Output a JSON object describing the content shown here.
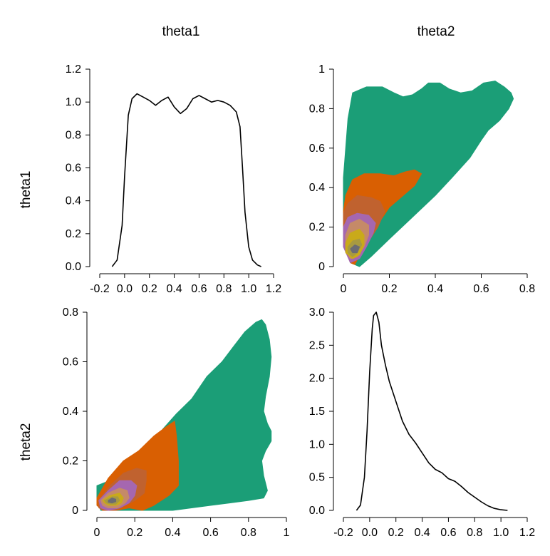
{
  "column_titles": [
    "theta1",
    "theta2"
  ],
  "row_titles": [
    "theta1",
    "theta2"
  ],
  "colors": {
    "levels": [
      "#1b9e77",
      "#d95f02",
      "#c0622f",
      "#a567b0",
      "#c58a68",
      "#c9aa1a",
      "#a89a40",
      "#6b6b73"
    ],
    "density_line": "#000000"
  },
  "chart_data": [
    {
      "panel": "theta1-density",
      "type": "line",
      "x": [
        -0.1,
        -0.06,
        -0.02,
        0.0,
        0.03,
        0.06,
        0.1,
        0.15,
        0.2,
        0.25,
        0.3,
        0.35,
        0.4,
        0.45,
        0.5,
        0.55,
        0.6,
        0.65,
        0.7,
        0.75,
        0.8,
        0.85,
        0.9,
        0.93,
        0.95,
        0.97,
        1.0,
        1.03,
        1.07,
        1.1
      ],
      "y": [
        0.0,
        0.04,
        0.25,
        0.55,
        0.92,
        1.02,
        1.05,
        1.03,
        1.01,
        0.98,
        1.01,
        1.03,
        0.97,
        0.93,
        0.96,
        1.02,
        1.04,
        1.02,
        1.0,
        1.01,
        1.0,
        0.98,
        0.94,
        0.85,
        0.6,
        0.33,
        0.12,
        0.04,
        0.01,
        0.0
      ],
      "x_ticks": [
        "-0.2",
        "0.0",
        "0.2",
        "0.4",
        "0.6",
        "0.8",
        "1.0",
        "1.2"
      ],
      "y_ticks": [
        "0.0",
        "0.2",
        "0.4",
        "0.6",
        "0.8",
        "1.0",
        "1.2"
      ],
      "xlim": [
        -0.2,
        1.2
      ],
      "ylim": [
        0,
        1.2
      ]
    },
    {
      "panel": "theta2-vs-theta1-contour",
      "type": "area",
      "levels": [
        [
          [
            0.0,
            0.45
          ],
          [
            0.01,
            0.6
          ],
          [
            0.02,
            0.75
          ],
          [
            0.04,
            0.88
          ],
          [
            0.1,
            0.91
          ],
          [
            0.17,
            0.91
          ],
          [
            0.22,
            0.88
          ],
          [
            0.26,
            0.86
          ],
          [
            0.3,
            0.87
          ],
          [
            0.34,
            0.9
          ],
          [
            0.37,
            0.93
          ],
          [
            0.42,
            0.93
          ],
          [
            0.46,
            0.9
          ],
          [
            0.51,
            0.88
          ],
          [
            0.56,
            0.89
          ],
          [
            0.61,
            0.93
          ],
          [
            0.66,
            0.94
          ],
          [
            0.7,
            0.91
          ],
          [
            0.73,
            0.88
          ],
          [
            0.74,
            0.85
          ],
          [
            0.72,
            0.8
          ],
          [
            0.68,
            0.74
          ],
          [
            0.63,
            0.69
          ],
          [
            0.6,
            0.64
          ],
          [
            0.55,
            0.55
          ],
          [
            0.48,
            0.46
          ],
          [
            0.4,
            0.36
          ],
          [
            0.3,
            0.25
          ],
          [
            0.2,
            0.14
          ],
          [
            0.12,
            0.05
          ],
          [
            0.07,
            0.0
          ],
          [
            0.03,
            0.02
          ],
          [
            0.01,
            0.1
          ],
          [
            0.0,
            0.25
          ]
        ],
        [
          [
            0.0,
            0.28
          ],
          [
            0.01,
            0.36
          ],
          [
            0.04,
            0.44
          ],
          [
            0.09,
            0.47
          ],
          [
            0.16,
            0.47
          ],
          [
            0.22,
            0.46
          ],
          [
            0.27,
            0.48
          ],
          [
            0.31,
            0.49
          ],
          [
            0.34,
            0.47
          ],
          [
            0.31,
            0.41
          ],
          [
            0.26,
            0.36
          ],
          [
            0.2,
            0.3
          ],
          [
            0.13,
            0.18
          ],
          [
            0.08,
            0.08
          ],
          [
            0.05,
            0.01
          ],
          [
            0.03,
            0.02
          ],
          [
            0.0,
            0.12
          ]
        ],
        [
          [
            0.0,
            0.27
          ],
          [
            0.02,
            0.32
          ],
          [
            0.06,
            0.36
          ],
          [
            0.12,
            0.35
          ],
          [
            0.16,
            0.33
          ],
          [
            0.18,
            0.28
          ],
          [
            0.15,
            0.2
          ],
          [
            0.1,
            0.11
          ],
          [
            0.06,
            0.04
          ],
          [
            0.03,
            0.03
          ],
          [
            0.0,
            0.12
          ]
        ],
        [
          [
            0.0,
            0.2
          ],
          [
            0.02,
            0.25
          ],
          [
            0.06,
            0.27
          ],
          [
            0.11,
            0.26
          ],
          [
            0.14,
            0.22
          ],
          [
            0.13,
            0.17
          ],
          [
            0.1,
            0.1
          ],
          [
            0.07,
            0.04
          ],
          [
            0.03,
            0.02
          ],
          [
            0.0,
            0.1
          ]
        ],
        [
          [
            0.01,
            0.16
          ],
          [
            0.03,
            0.22
          ],
          [
            0.07,
            0.24
          ],
          [
            0.11,
            0.21
          ],
          [
            0.11,
            0.16
          ],
          [
            0.09,
            0.1
          ],
          [
            0.06,
            0.05
          ],
          [
            0.03,
            0.04
          ],
          [
            0.01,
            0.08
          ]
        ],
        [
          [
            0.01,
            0.12
          ],
          [
            0.03,
            0.17
          ],
          [
            0.07,
            0.19
          ],
          [
            0.09,
            0.16
          ],
          [
            0.09,
            0.11
          ],
          [
            0.07,
            0.06
          ],
          [
            0.04,
            0.04
          ],
          [
            0.01,
            0.07
          ]
        ],
        [
          [
            0.02,
            0.1
          ],
          [
            0.04,
            0.13
          ],
          [
            0.07,
            0.14
          ],
          [
            0.08,
            0.11
          ],
          [
            0.06,
            0.07
          ],
          [
            0.04,
            0.05
          ],
          [
            0.02,
            0.07
          ]
        ],
        [
          [
            0.03,
            0.09
          ],
          [
            0.05,
            0.11
          ],
          [
            0.07,
            0.1
          ],
          [
            0.06,
            0.07
          ],
          [
            0.04,
            0.07
          ]
        ]
      ],
      "x_ticks": [
        "0",
        "0.2",
        "0.4",
        "0.6",
        "0.8"
      ],
      "y_ticks": [
        "0",
        "0.2",
        "0.4",
        "0.6",
        "0.8",
        "1"
      ],
      "xlim": [
        0,
        0.8
      ],
      "ylim": [
        0,
        1
      ]
    },
    {
      "panel": "theta1-vs-theta2-contour",
      "type": "area",
      "levels": [
        [
          [
            0.0,
            0.1
          ],
          [
            0.1,
            0.13
          ],
          [
            0.2,
            0.2
          ],
          [
            0.28,
            0.26
          ],
          [
            0.35,
            0.33
          ],
          [
            0.42,
            0.39
          ],
          [
            0.5,
            0.45
          ],
          [
            0.58,
            0.54
          ],
          [
            0.66,
            0.6
          ],
          [
            0.72,
            0.66
          ],
          [
            0.78,
            0.72
          ],
          [
            0.84,
            0.76
          ],
          [
            0.87,
            0.77
          ],
          [
            0.89,
            0.75
          ],
          [
            0.91,
            0.69
          ],
          [
            0.92,
            0.62
          ],
          [
            0.91,
            0.54
          ],
          [
            0.89,
            0.46
          ],
          [
            0.88,
            0.4
          ],
          [
            0.9,
            0.35
          ],
          [
            0.92,
            0.32
          ],
          [
            0.92,
            0.28
          ],
          [
            0.89,
            0.24
          ],
          [
            0.87,
            0.2
          ],
          [
            0.88,
            0.14
          ],
          [
            0.9,
            0.08
          ],
          [
            0.88,
            0.05
          ],
          [
            0.8,
            0.04
          ],
          [
            0.7,
            0.03
          ],
          [
            0.6,
            0.02
          ],
          [
            0.5,
            0.01
          ],
          [
            0.4,
            0.0
          ],
          [
            0.25,
            0.0
          ],
          [
            0.12,
            0.0
          ],
          [
            0.02,
            0.0
          ],
          [
            0.0,
            0.05
          ]
        ],
        [
          [
            0.0,
            0.05
          ],
          [
            0.06,
            0.13
          ],
          [
            0.14,
            0.2
          ],
          [
            0.22,
            0.24
          ],
          [
            0.3,
            0.3
          ],
          [
            0.37,
            0.34
          ],
          [
            0.41,
            0.36
          ],
          [
            0.42,
            0.3
          ],
          [
            0.43,
            0.2
          ],
          [
            0.43,
            0.1
          ],
          [
            0.38,
            0.06
          ],
          [
            0.3,
            0.02
          ],
          [
            0.24,
            0.0
          ],
          [
            0.17,
            0.01
          ],
          [
            0.1,
            0.0
          ],
          [
            0.03,
            0.0
          ],
          [
            0.0,
            0.02
          ]
        ],
        [
          [
            0.01,
            0.04
          ],
          [
            0.07,
            0.1
          ],
          [
            0.14,
            0.15
          ],
          [
            0.21,
            0.17
          ],
          [
            0.26,
            0.16
          ],
          [
            0.26,
            0.12
          ],
          [
            0.25,
            0.07
          ],
          [
            0.2,
            0.04
          ],
          [
            0.15,
            0.02
          ],
          [
            0.1,
            0.0
          ],
          [
            0.04,
            0.0
          ],
          [
            0.01,
            0.01
          ]
        ],
        [
          [
            0.01,
            0.04
          ],
          [
            0.06,
            0.08
          ],
          [
            0.12,
            0.12
          ],
          [
            0.18,
            0.12
          ],
          [
            0.21,
            0.1
          ],
          [
            0.2,
            0.06
          ],
          [
            0.17,
            0.03
          ],
          [
            0.12,
            0.01
          ],
          [
            0.06,
            0.0
          ],
          [
            0.02,
            0.01
          ]
        ],
        [
          [
            0.02,
            0.04
          ],
          [
            0.06,
            0.07
          ],
          [
            0.12,
            0.09
          ],
          [
            0.16,
            0.08
          ],
          [
            0.17,
            0.05
          ],
          [
            0.15,
            0.03
          ],
          [
            0.11,
            0.01
          ],
          [
            0.06,
            0.01
          ],
          [
            0.03,
            0.02
          ]
        ],
        [
          [
            0.03,
            0.04
          ],
          [
            0.07,
            0.06
          ],
          [
            0.12,
            0.07
          ],
          [
            0.14,
            0.05
          ],
          [
            0.13,
            0.03
          ],
          [
            0.1,
            0.02
          ],
          [
            0.06,
            0.02
          ],
          [
            0.04,
            0.03
          ]
        ],
        [
          [
            0.04,
            0.04
          ],
          [
            0.08,
            0.055
          ],
          [
            0.11,
            0.055
          ],
          [
            0.12,
            0.04
          ],
          [
            0.1,
            0.025
          ],
          [
            0.07,
            0.025
          ],
          [
            0.05,
            0.03
          ]
        ],
        [
          [
            0.06,
            0.04
          ],
          [
            0.08,
            0.05
          ],
          [
            0.1,
            0.045
          ],
          [
            0.1,
            0.035
          ],
          [
            0.08,
            0.03
          ],
          [
            0.06,
            0.033
          ]
        ]
      ],
      "x_ticks": [
        "0",
        "0.2",
        "0.4",
        "0.6",
        "0.8",
        "1"
      ],
      "y_ticks": [
        "0",
        "0.2",
        "0.4",
        "0.6",
        "0.8"
      ],
      "xlim": [
        0,
        1
      ],
      "ylim": [
        0,
        0.8
      ]
    },
    {
      "panel": "theta2-density",
      "type": "line",
      "x": [
        -0.1,
        -0.07,
        -0.04,
        -0.02,
        0.0,
        0.02,
        0.03,
        0.05,
        0.07,
        0.09,
        0.12,
        0.15,
        0.2,
        0.25,
        0.3,
        0.35,
        0.4,
        0.45,
        0.5,
        0.55,
        0.6,
        0.65,
        0.7,
        0.75,
        0.8,
        0.85,
        0.9,
        0.95,
        1.0,
        1.05
      ],
      "y": [
        0.0,
        0.08,
        0.5,
        1.2,
        2.1,
        2.75,
        2.95,
        3.0,
        2.85,
        2.5,
        2.2,
        1.95,
        1.65,
        1.35,
        1.15,
        1.02,
        0.87,
        0.72,
        0.62,
        0.57,
        0.48,
        0.44,
        0.36,
        0.27,
        0.2,
        0.13,
        0.07,
        0.03,
        0.01,
        0.0
      ],
      "x_ticks": [
        "-0.2",
        "0.0",
        "0.2",
        "0.4",
        "0.6",
        "0.8",
        "1.0",
        "1.2"
      ],
      "y_ticks": [
        "0.0",
        "0.5",
        "1.0",
        "1.5",
        "2.0",
        "2.5",
        "3.0"
      ],
      "xlim": [
        -0.2,
        1.2
      ],
      "ylim": [
        0,
        3
      ]
    }
  ]
}
